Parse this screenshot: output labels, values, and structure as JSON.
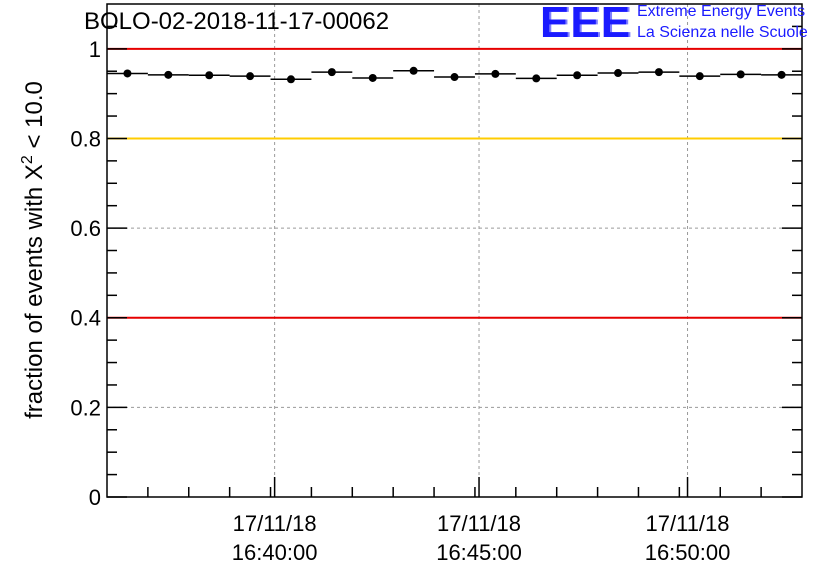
{
  "title": "BOLO-02-2018-11-17-00062",
  "logo": {
    "mark": "EEE",
    "line1": "Extreme Energy Events",
    "line2": "La Scienza nelle Scuole"
  },
  "chart_data": {
    "type": "scatter",
    "ylabel_prefix": "fraction of events with ",
    "ylabel_symbol": "X",
    "ylabel_exp": "2",
    "ylabel_suffix": " < 10.0",
    "ylim": [
      0,
      1.1
    ],
    "yticks": [
      0,
      0.2,
      0.4,
      0.6,
      0.8,
      1
    ],
    "ytick_labels": [
      "0",
      "0.2",
      "0.4",
      "0.6",
      "0.8",
      "1"
    ],
    "xlim": [
      0,
      17
    ],
    "xticks": [
      {
        "x": 4.1,
        "date": "17/11/18",
        "time": "16:40:00"
      },
      {
        "x": 9.1,
        "date": "17/11/18",
        "time": "16:45:00"
      },
      {
        "x": 14.2,
        "date": "17/11/18",
        "time": "16:50:00"
      }
    ],
    "grid": true,
    "reference_lines": [
      {
        "y": 1.0,
        "color": "#e60000"
      },
      {
        "y": 0.8,
        "color": "#ffcc00"
      },
      {
        "y": 0.4,
        "color": "#e60000"
      }
    ],
    "series": [
      {
        "x": [
          0.5,
          1.5,
          2.5,
          3.5,
          4.5,
          5.5,
          6.5,
          7.5,
          8.5,
          9.5,
          10.5,
          11.5,
          12.5,
          13.5,
          14.5,
          15.5,
          16.5
        ],
        "values": [
          0.945,
          0.942,
          0.941,
          0.939,
          0.932,
          0.948,
          0.935,
          0.951,
          0.937,
          0.944,
          0.934,
          0.941,
          0.946,
          0.948,
          0.939,
          0.943,
          0.942
        ]
      }
    ]
  }
}
